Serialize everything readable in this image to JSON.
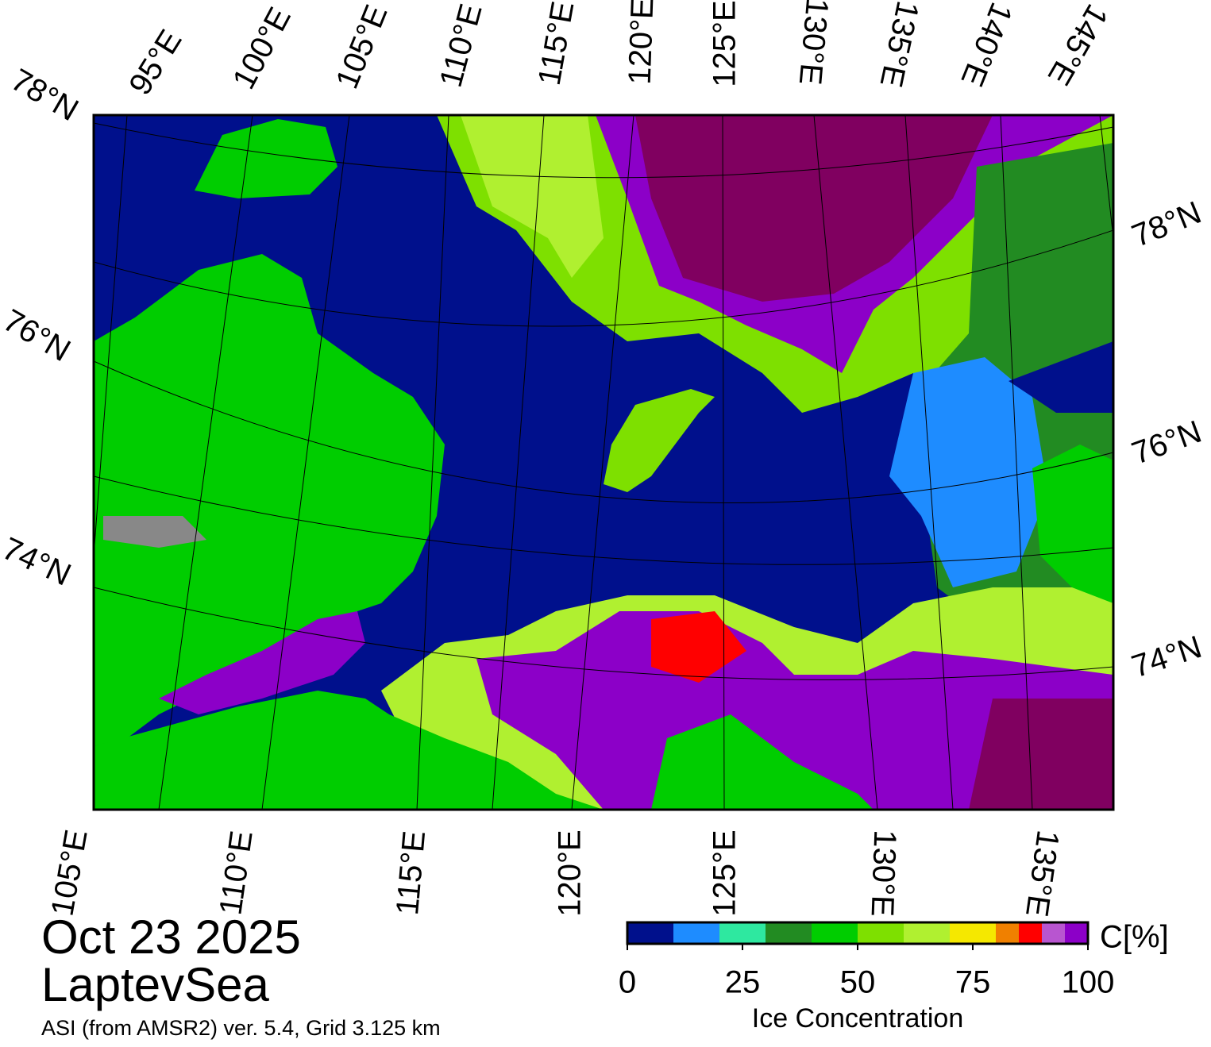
{
  "title": {
    "date": "Oct 23 2025",
    "region": "LaptevSea",
    "source": "ASI (from AMSR2) ver. 5.4,  Grid 3.125 km"
  },
  "top_labels": [
    "78°N",
    "95°E",
    "100°E",
    "105°E",
    "110°E",
    "115°E",
    "120°E",
    "125°E",
    "130°E",
    "135°E",
    "140°E",
    "145°E"
  ],
  "right_labels": [
    "78°N",
    "76°N",
    "74°N"
  ],
  "left_labels": [
    "76°N",
    "74°N"
  ],
  "bottom_labels": [
    "105°E",
    "110°E",
    "115°E",
    "120°E",
    "125°E",
    "130°E",
    "135°E"
  ],
  "colorbar": {
    "label": "Ice Concentration",
    "unit": "C[%]",
    "range": [
      0,
      100
    ],
    "ticks": [
      0,
      25,
      50,
      75,
      100
    ],
    "bins": [
      0,
      10,
      20,
      30,
      40,
      50,
      60,
      70,
      80,
      85,
      90,
      95,
      100
    ],
    "colors": [
      "#00108c",
      "#1e8cff",
      "#2ee8a0",
      "#228b22",
      "#00cd00",
      "#7ee000",
      "#b0f030",
      "#f5e800",
      "#f08000",
      "#ff0000",
      "#b855d0",
      "#8c00c8"
    ]
  }
}
